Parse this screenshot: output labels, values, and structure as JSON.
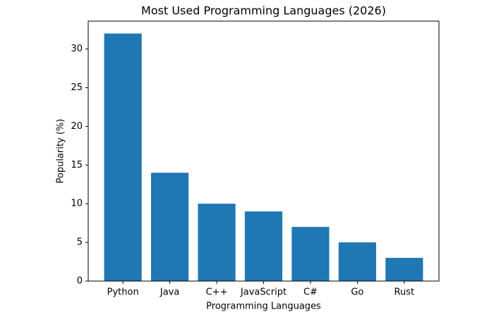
{
  "chart_data": {
    "type": "bar",
    "title": "Most Used Programming Languages (2026)",
    "x_label": "Programming Languages",
    "y_label": "Popularity (%)",
    "categories": [
      "Python",
      "Java",
      "C++",
      "JavaScript",
      "C#",
      "Go",
      "Rust"
    ],
    "values": [
      32,
      14,
      10,
      9,
      7,
      5,
      3
    ],
    "color": "#1f77b4",
    "ylim": [
      0,
      33.6
    ],
    "yticks": [
      0,
      5,
      10,
      15,
      20,
      25,
      30
    ],
    "grid": false
  }
}
